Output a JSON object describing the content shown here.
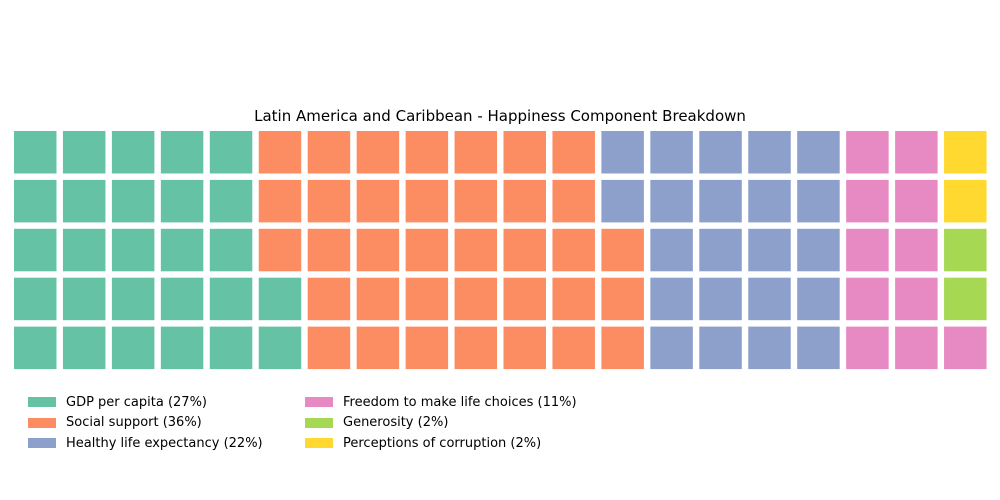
{
  "chart_data": {
    "type": "waffle",
    "title": "Latin America and Caribbean - Happiness Component Breakdown",
    "rows": 5,
    "columns": 20,
    "fill_order": "column-major, bottom-to-top, left-to-right",
    "legend_position": "bottom-left",
    "categories": [
      {
        "label": "GDP per capita (27%)",
        "cells": 27,
        "color": "#66c2a5"
      },
      {
        "label": "Social support (36%)",
        "cells": 36,
        "color": "#fc8d62"
      },
      {
        "label": "Healthy life expectancy (22%)",
        "cells": 22,
        "color": "#8da0cb"
      },
      {
        "label": "Freedom to make life choices (11%)",
        "cells": 11,
        "color": "#e78ac3"
      },
      {
        "label": "Generosity (2%)",
        "cells": 2,
        "color": "#a6d854"
      },
      {
        "label": "Perceptions of corruption (2%)",
        "cells": 2,
        "color": "#ffd92f"
      }
    ]
  }
}
